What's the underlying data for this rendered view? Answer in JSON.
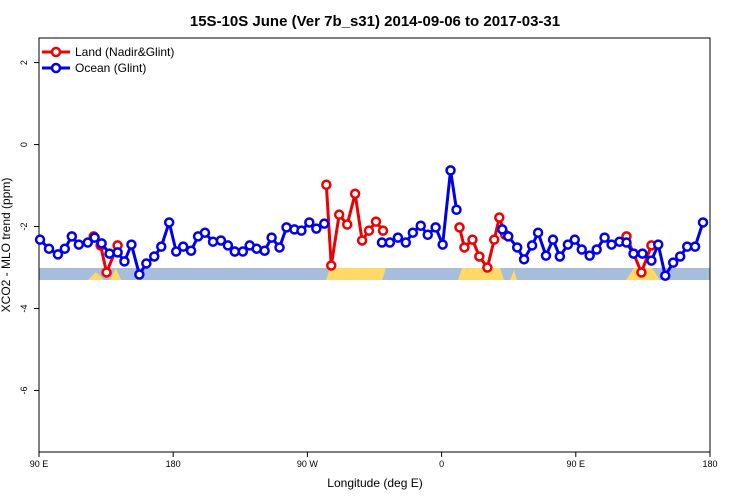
{
  "chart_data": {
    "type": "line",
    "title": "15S-10S June (Ver 7b_s31)   2014-09-06 to 2017-03-31",
    "x_label": "Longitude (deg E)",
    "y_label": "XCO2 - MLO trend (ppm)",
    "xlim": [
      90,
      540
    ],
    "ylim": [
      -7.5,
      2.6
    ],
    "xticks": [
      {
        "value": 90,
        "label": "90 E"
      },
      {
        "value": 180,
        "label": "180"
      },
      {
        "value": 270,
        "label": "90 W"
      },
      {
        "value": 360,
        "label": "0"
      },
      {
        "value": 450,
        "label": "90 E"
      },
      {
        "value": 540,
        "label": "180"
      }
    ],
    "yticks": [
      2,
      0,
      -2,
      -4,
      -6
    ],
    "legend": "top-left",
    "series": [
      {
        "name": "Land (Nadir&Glint)",
        "color": "#ee0000",
        "x": [
          126.7,
          131.3,
          135.3,
          142.7,
          180,
          221.3,
          250,
          282.7,
          286,
          291.3,
          296.7,
          302,
          306.7,
          311.3,
          316,
          320.7,
          350,
          372,
          375.3,
          380.7,
          385.3,
          390.7,
          395.3,
          398.7,
          402.7,
          450,
          484,
          494,
          500.7
        ],
        "values": [
          -2.24,
          -2.46,
          -3.12,
          -2.46,
          null,
          -2.61,
          null,
          -0.98,
          -2.95,
          -1.71,
          -1.95,
          -1.2,
          -2.34,
          -2.1,
          -1.88,
          -2.1,
          null,
          -2.02,
          -2.51,
          -2.32,
          -2.73,
          -3.0,
          -2.32,
          -1.78,
          -2.2,
          null,
          -2.24,
          -3.12,
          -2.46
        ]
      },
      {
        "name": "Ocean (Glint)",
        "color": "#0000ee",
        "x": [
          90.7,
          96.7,
          102.7,
          107.3,
          112,
          116.7,
          122.7,
          127.3,
          132,
          137.3,
          142.7,
          147.3,
          152,
          157.3,
          162,
          167.3,
          172,
          177.3,
          182,
          186.7,
          192,
          196.7,
          201.3,
          206.7,
          212,
          216.7,
          221.3,
          226.7,
          231.3,
          236,
          241.3,
          246,
          251.3,
          256,
          261.3,
          266,
          271.3,
          276,
          281.3,
          300,
          320,
          325.3,
          330.7,
          336,
          340.7,
          346,
          350.7,
          356,
          360.7,
          366,
          370,
          385,
          400.7,
          404.7,
          410.7,
          415.3,
          420.7,
          424.7,
          430,
          434.7,
          439.3,
          444.7,
          449.3,
          454,
          459.3,
          464,
          469.3,
          474,
          479.3,
          484,
          488.7,
          494.7,
          500.7,
          505.3,
          510,
          515.3,
          520,
          524.7,
          530,
          535.3
        ],
        "values": [
          -2.32,
          -2.54,
          -2.68,
          -2.54,
          -2.24,
          -2.44,
          -2.39,
          -2.27,
          -2.41,
          -2.66,
          -2.63,
          -2.85,
          -2.44,
          -3.17,
          -2.9,
          -2.73,
          -2.49,
          -1.9,
          -2.61,
          -2.49,
          -2.59,
          -2.24,
          -2.15,
          -2.37,
          -2.34,
          -2.46,
          -2.61,
          -2.61,
          -2.46,
          -2.54,
          -2.59,
          -2.27,
          -2.51,
          -2.02,
          -2.07,
          -2.1,
          -1.9,
          -2.05,
          -1.93,
          null,
          -2.39,
          -2.39,
          -2.27,
          -2.39,
          -2.15,
          -1.98,
          -2.2,
          -2.02,
          -2.44,
          -0.63,
          -1.59,
          null,
          -2.07,
          -2.24,
          -2.51,
          -2.8,
          -2.46,
          -2.15,
          -2.71,
          -2.32,
          -2.73,
          -2.44,
          -2.32,
          -2.56,
          -2.71,
          -2.56,
          -2.27,
          -2.44,
          -2.37,
          -2.39,
          -2.66,
          -2.66,
          -2.83,
          -2.44,
          -3.2,
          -2.88,
          -2.73,
          -2.49,
          -2.49,
          -1.9
        ]
      }
    ]
  }
}
